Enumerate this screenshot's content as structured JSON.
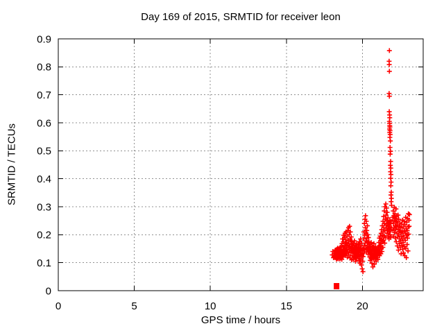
{
  "window": {
    "background": "#ffffff"
  },
  "chart_data": {
    "type": "scatter",
    "title": "Day 169 of 2015, SRMTID for receiver leon",
    "xlabel": "GPS time / hours",
    "ylabel": "SRMTID / TECUs",
    "xlim": [
      0,
      24
    ],
    "ylim": [
      0,
      0.9
    ],
    "xticks": [
      [
        0,
        "0"
      ],
      [
        5,
        "5"
      ],
      [
        10,
        "10"
      ],
      [
        15,
        "15"
      ],
      [
        20,
        "20"
      ]
    ],
    "yticks": [
      [
        0,
        "0"
      ],
      [
        0.1,
        "0.1"
      ],
      [
        0.2,
        "0.2"
      ],
      [
        0.3,
        "0.3"
      ],
      [
        0.4,
        "0.4"
      ],
      [
        0.5,
        "0.5"
      ],
      [
        0.6,
        "0.6"
      ],
      [
        0.7,
        "0.7"
      ],
      [
        0.8,
        "0.8"
      ],
      [
        0.9,
        "0.9"
      ]
    ],
    "grid": true,
    "legend": "none",
    "marker": "plus",
    "marker_color": "#ff0000",
    "grid_color": "#909090",
    "axis_color": "#000000",
    "extra_point": {
      "x": 18.3,
      "y": 0.0,
      "marker": "filled-square"
    },
    "points": [
      [
        18.02,
        0.128
      ],
      [
        18.06,
        0.14
      ],
      [
        18.1,
        0.118
      ],
      [
        18.14,
        0.133
      ],
      [
        18.18,
        0.122
      ],
      [
        18.22,
        0.145
      ],
      [
        18.25,
        0.13
      ],
      [
        18.26,
        0.118
      ],
      [
        18.27,
        0.142
      ],
      [
        18.28,
        0.125
      ],
      [
        18.3,
        0.135
      ],
      [
        18.3,
        0.112
      ],
      [
        18.32,
        0.148
      ],
      [
        18.33,
        0.127
      ],
      [
        18.34,
        0.139
      ],
      [
        18.36,
        0.116
      ],
      [
        18.37,
        0.131
      ],
      [
        18.38,
        0.152
      ],
      [
        18.39,
        0.122
      ],
      [
        18.41,
        0.137
      ],
      [
        18.42,
        0.114
      ],
      [
        18.43,
        0.145
      ],
      [
        18.44,
        0.128
      ],
      [
        18.46,
        0.133
      ],
      [
        18.47,
        0.119
      ],
      [
        18.48,
        0.15
      ],
      [
        18.49,
        0.126
      ],
      [
        18.51,
        0.14
      ],
      [
        18.52,
        0.113
      ],
      [
        18.53,
        0.136
      ],
      [
        18.54,
        0.155
      ],
      [
        18.56,
        0.124
      ],
      [
        18.57,
        0.143
      ],
      [
        18.58,
        0.117
      ],
      [
        18.59,
        0.132
      ],
      [
        18.6,
        0.147
      ],
      [
        18.61,
        0.121
      ],
      [
        18.62,
        0.158
      ],
      [
        18.63,
        0.134
      ],
      [
        18.65,
        0.112
      ],
      [
        18.66,
        0.168
      ],
      [
        18.67,
        0.141
      ],
      [
        18.68,
        0.125
      ],
      [
        18.7,
        0.185
      ],
      [
        18.71,
        0.138
      ],
      [
        18.72,
        0.155
      ],
      [
        18.73,
        0.12
      ],
      [
        18.75,
        0.175
      ],
      [
        18.76,
        0.132
      ],
      [
        18.77,
        0.198
      ],
      [
        18.78,
        0.144
      ],
      [
        18.8,
        0.161
      ],
      [
        18.81,
        0.128
      ],
      [
        18.82,
        0.19
      ],
      [
        18.83,
        0.149
      ],
      [
        18.85,
        0.135
      ],
      [
        18.86,
        0.205
      ],
      [
        18.87,
        0.152
      ],
      [
        18.88,
        0.17
      ],
      [
        18.9,
        0.126
      ],
      [
        18.91,
        0.182
      ],
      [
        18.92,
        0.146
      ],
      [
        18.93,
        0.21
      ],
      [
        18.95,
        0.16
      ],
      [
        18.96,
        0.133
      ],
      [
        18.97,
        0.172
      ],
      [
        18.99,
        0.148
      ],
      [
        19.0,
        0.195
      ],
      [
        19.01,
        0.12
      ],
      [
        19.03,
        0.162
      ],
      [
        19.04,
        0.215
      ],
      [
        19.05,
        0.139
      ],
      [
        19.07,
        0.18
      ],
      [
        19.08,
        0.155
      ],
      [
        19.09,
        0.225
      ],
      [
        19.11,
        0.128
      ],
      [
        19.12,
        0.168
      ],
      [
        19.13,
        0.2
      ],
      [
        19.15,
        0.145
      ],
      [
        19.16,
        0.23
      ],
      [
        19.17,
        0.158
      ],
      [
        19.19,
        0.185
      ],
      [
        19.2,
        0.117
      ],
      [
        19.21,
        0.21
      ],
      [
        19.23,
        0.15
      ],
      [
        19.24,
        0.175
      ],
      [
        19.25,
        0.135
      ],
      [
        19.27,
        0.192
      ],
      [
        19.28,
        0.16
      ],
      [
        19.29,
        0.11
      ],
      [
        19.31,
        0.178
      ],
      [
        19.32,
        0.142
      ],
      [
        19.33,
        0.165
      ],
      [
        19.35,
        0.152
      ],
      [
        19.36,
        0.125
      ],
      [
        19.38,
        0.16
      ],
      [
        19.39,
        0.138
      ],
      [
        19.4,
        0.112
      ],
      [
        19.42,
        0.17
      ],
      [
        19.43,
        0.146
      ],
      [
        19.44,
        0.122
      ],
      [
        19.46,
        0.155
      ],
      [
        19.47,
        0.133
      ],
      [
        19.48,
        0.178
      ],
      [
        19.5,
        0.118
      ],
      [
        19.51,
        0.15
      ],
      [
        19.52,
        0.136
      ],
      [
        19.54,
        0.163
      ],
      [
        19.55,
        0.105
      ],
      [
        19.56,
        0.144
      ],
      [
        19.58,
        0.128
      ],
      [
        19.59,
        0.157
      ],
      [
        19.6,
        0.14
      ],
      [
        19.62,
        0.115
      ],
      [
        19.63,
        0.168
      ],
      [
        19.64,
        0.131
      ],
      [
        19.66,
        0.152
      ],
      [
        19.67,
        0.124
      ],
      [
        19.68,
        0.145
      ],
      [
        19.7,
        0.135
      ],
      [
        19.71,
        0.148
      ],
      [
        19.73,
        0.12
      ],
      [
        19.74,
        0.165
      ],
      [
        19.75,
        0.138
      ],
      [
        19.77,
        0.108
      ],
      [
        19.78,
        0.155
      ],
      [
        19.79,
        0.13
      ],
      [
        19.81,
        0.175
      ],
      [
        19.82,
        0.115
      ],
      [
        19.83,
        0.142
      ],
      [
        19.85,
        0.098
      ],
      [
        19.86,
        0.16
      ],
      [
        19.87,
        0.128
      ],
      [
        19.89,
        0.185
      ],
      [
        19.9,
        0.135
      ],
      [
        19.91,
        0.11
      ],
      [
        19.93,
        0.152
      ],
      [
        19.94,
        0.092
      ],
      [
        19.95,
        0.17
      ],
      [
        19.96,
        0.125
      ],
      [
        19.98,
        0.145
      ],
      [
        19.99,
        0.078
      ],
      [
        20.0,
        0.132
      ],
      [
        20.02,
        0.105
      ],
      [
        20.03,
        0.148
      ],
      [
        20.04,
        0.068
      ],
      [
        20.05,
        0.122
      ],
      [
        20.06,
        0.15
      ],
      [
        20.08,
        0.185
      ],
      [
        20.09,
        0.135
      ],
      [
        20.1,
        0.21
      ],
      [
        20.12,
        0.162
      ],
      [
        20.13,
        0.24
      ],
      [
        20.14,
        0.145
      ],
      [
        20.16,
        0.198
      ],
      [
        20.17,
        0.255
      ],
      [
        20.18,
        0.17
      ],
      [
        20.2,
        0.225
      ],
      [
        20.21,
        0.268
      ],
      [
        20.22,
        0.152
      ],
      [
        20.24,
        0.205
      ],
      [
        20.25,
        0.178
      ],
      [
        20.26,
        0.248
      ],
      [
        20.28,
        0.14
      ],
      [
        20.29,
        0.215
      ],
      [
        20.3,
        0.188
      ],
      [
        20.32,
        0.16
      ],
      [
        20.33,
        0.232
      ],
      [
        20.34,
        0.148
      ],
      [
        20.36,
        0.2
      ],
      [
        20.37,
        0.172
      ],
      [
        20.38,
        0.13
      ],
      [
        20.4,
        0.19
      ],
      [
        20.41,
        0.155
      ],
      [
        20.43,
        0.175
      ],
      [
        20.44,
        0.142
      ],
      [
        20.45,
        0.165
      ],
      [
        20.46,
        0.138
      ],
      [
        20.48,
        0.158
      ],
      [
        20.49,
        0.12
      ],
      [
        20.5,
        0.145
      ],
      [
        20.52,
        0.108
      ],
      [
        20.53,
        0.165
      ],
      [
        20.54,
        0.132
      ],
      [
        20.56,
        0.15
      ],
      [
        20.57,
        0.115
      ],
      [
        20.58,
        0.172
      ],
      [
        20.6,
        0.128
      ],
      [
        20.61,
        0.142
      ],
      [
        20.63,
        0.098
      ],
      [
        20.64,
        0.16
      ],
      [
        20.65,
        0.135
      ],
      [
        20.67,
        0.118
      ],
      [
        20.68,
        0.148
      ],
      [
        20.69,
        0.085
      ],
      [
        20.71,
        0.155
      ],
      [
        20.72,
        0.125
      ],
      [
        20.73,
        0.14
      ],
      [
        20.75,
        0.112
      ],
      [
        20.76,
        0.168
      ],
      [
        20.77,
        0.13
      ],
      [
        20.79,
        0.095
      ],
      [
        20.8,
        0.152
      ],
      [
        20.81,
        0.122
      ],
      [
        20.83,
        0.145
      ],
      [
        20.84,
        0.135
      ],
      [
        20.86,
        0.115
      ],
      [
        20.87,
        0.158
      ],
      [
        20.88,
        0.128
      ],
      [
        20.9,
        0.142
      ],
      [
        20.91,
        0.105
      ],
      [
        20.93,
        0.15
      ],
      [
        20.94,
        0.132
      ],
      [
        20.95,
        0.118
      ],
      [
        20.97,
        0.145
      ],
      [
        20.98,
        0.125
      ],
      [
        21.0,
        0.138
      ],
      [
        21.02,
        0.112
      ],
      [
        21.03,
        0.13
      ],
      [
        21.05,
        0.148
      ],
      [
        21.06,
        0.155
      ],
      [
        21.08,
        0.135
      ],
      [
        21.09,
        0.172
      ],
      [
        21.1,
        0.148
      ],
      [
        21.12,
        0.188
      ],
      [
        21.13,
        0.125
      ],
      [
        21.14,
        0.162
      ],
      [
        21.16,
        0.142
      ],
      [
        21.17,
        0.195
      ],
      [
        21.18,
        0.158
      ],
      [
        21.2,
        0.178
      ],
      [
        21.21,
        0.132
      ],
      [
        21.23,
        0.205
      ],
      [
        21.24,
        0.168
      ],
      [
        21.25,
        0.15
      ],
      [
        21.27,
        0.218
      ],
      [
        21.28,
        0.185
      ],
      [
        21.29,
        0.14
      ],
      [
        21.31,
        0.232
      ],
      [
        21.32,
        0.175
      ],
      [
        21.33,
        0.198
      ],
      [
        21.35,
        0.155
      ],
      [
        21.36,
        0.248
      ],
      [
        21.37,
        0.21
      ],
      [
        21.39,
        0.18
      ],
      [
        21.4,
        0.265
      ],
      [
        21.41,
        0.225
      ],
      [
        21.43,
        0.195
      ],
      [
        21.44,
        0.285
      ],
      [
        21.45,
        0.24
      ],
      [
        21.47,
        0.17
      ],
      [
        21.48,
        0.3
      ],
      [
        21.49,
        0.215
      ],
      [
        21.51,
        0.255
      ],
      [
        21.52,
        0.19
      ],
      [
        21.54,
        0.31
      ],
      [
        21.55,
        0.235
      ],
      [
        21.56,
        0.27
      ],
      [
        21.58,
        0.225
      ],
      [
        21.59,
        0.295
      ],
      [
        21.6,
        0.25
      ],
      [
        21.62,
        0.205
      ],
      [
        21.63,
        0.28
      ],
      [
        21.65,
        0.24
      ],
      [
        21.66,
        0.215
      ],
      [
        21.68,
        0.26
      ],
      [
        21.69,
        0.23
      ],
      [
        21.71,
        0.195
      ],
      [
        21.72,
        0.245
      ],
      [
        21.74,
        0.22
      ],
      [
        21.75,
        0.185
      ],
      [
        21.77,
        0.235
      ],
      [
        21.78,
        0.21
      ],
      [
        21.8,
        0.252
      ],
      [
        21.81,
        0.228
      ],
      [
        21.83,
        0.2
      ],
      [
        21.84,
        0.242
      ],
      [
        21.86,
        0.218
      ],
      [
        21.87,
        0.19
      ],
      [
        21.89,
        0.248
      ],
      [
        21.9,
        0.225
      ],
      [
        21.78,
        0.858
      ],
      [
        21.76,
        0.82
      ],
      [
        21.77,
        0.808
      ],
      [
        21.78,
        0.784
      ],
      [
        21.76,
        0.705
      ],
      [
        21.78,
        0.695
      ],
      [
        21.77,
        0.64
      ],
      [
        21.79,
        0.628
      ],
      [
        21.8,
        0.618
      ],
      [
        21.78,
        0.605
      ],
      [
        21.79,
        0.598
      ],
      [
        21.8,
        0.59
      ],
      [
        21.81,
        0.585
      ],
      [
        21.79,
        0.578
      ],
      [
        21.82,
        0.572
      ],
      [
        21.8,
        0.565
      ],
      [
        21.83,
        0.558
      ],
      [
        21.81,
        0.548
      ],
      [
        21.84,
        0.535
      ],
      [
        21.82,
        0.512
      ],
      [
        21.85,
        0.498
      ],
      [
        21.83,
        0.488
      ],
      [
        21.86,
        0.462
      ],
      [
        21.84,
        0.448
      ],
      [
        21.87,
        0.438
      ],
      [
        21.85,
        0.425
      ],
      [
        21.88,
        0.415
      ],
      [
        21.86,
        0.402
      ],
      [
        21.89,
        0.388
      ],
      [
        21.87,
        0.375
      ],
      [
        21.9,
        0.352
      ],
      [
        21.88,
        0.342
      ],
      [
        21.91,
        0.33
      ],
      [
        21.89,
        0.318
      ],
      [
        21.92,
        0.305
      ],
      [
        22.0,
        0.262
      ],
      [
        22.01,
        0.215
      ],
      [
        22.03,
        0.285
      ],
      [
        22.04,
        0.24
      ],
      [
        22.05,
        0.195
      ],
      [
        22.07,
        0.268
      ],
      [
        22.08,
        0.225
      ],
      [
        22.1,
        0.298
      ],
      [
        22.11,
        0.252
      ],
      [
        22.12,
        0.208
      ],
      [
        22.14,
        0.275
      ],
      [
        22.15,
        0.232
      ],
      [
        22.16,
        0.188
      ],
      [
        22.18,
        0.258
      ],
      [
        22.19,
        0.22
      ],
      [
        22.21,
        0.292
      ],
      [
        22.22,
        0.245
      ],
      [
        22.23,
        0.175
      ],
      [
        22.25,
        0.265
      ],
      [
        22.26,
        0.228
      ],
      [
        22.28,
        0.205
      ],
      [
        22.29,
        0.248
      ],
      [
        22.3,
        0.16
      ],
      [
        22.32,
        0.235
      ],
      [
        22.33,
        0.192
      ],
      [
        22.35,
        0.27
      ],
      [
        22.36,
        0.218
      ],
      [
        22.37,
        0.145
      ],
      [
        22.39,
        0.255
      ],
      [
        22.4,
        0.2
      ],
      [
        22.42,
        0.23
      ],
      [
        22.43,
        0.168
      ],
      [
        22.44,
        0.212
      ],
      [
        22.46,
        0.185
      ],
      [
        22.47,
        0.242
      ],
      [
        22.49,
        0.155
      ],
      [
        22.5,
        0.225
      ],
      [
        22.52,
        0.178
      ],
      [
        22.53,
        0.208
      ],
      [
        22.55,
        0.132
      ],
      [
        22.56,
        0.195
      ],
      [
        22.58,
        0.238
      ],
      [
        22.59,
        0.162
      ],
      [
        22.61,
        0.215
      ],
      [
        22.62,
        0.185
      ],
      [
        22.64,
        0.252
      ],
      [
        22.65,
        0.148
      ],
      [
        22.67,
        0.205
      ],
      [
        22.68,
        0.172
      ],
      [
        22.7,
        0.228
      ],
      [
        22.71,
        0.135
      ],
      [
        22.73,
        0.192
      ],
      [
        22.74,
        0.248
      ],
      [
        22.76,
        0.158
      ],
      [
        22.77,
        0.212
      ],
      [
        22.79,
        0.125
      ],
      [
        22.8,
        0.235
      ],
      [
        22.82,
        0.18
      ],
      [
        22.83,
        0.205
      ],
      [
        22.85,
        0.262
      ],
      [
        22.86,
        0.152
      ],
      [
        22.88,
        0.222
      ],
      [
        22.89,
        0.118
      ],
      [
        22.91,
        0.198
      ],
      [
        22.92,
        0.245
      ],
      [
        22.94,
        0.165
      ],
      [
        22.95,
        0.215
      ],
      [
        22.97,
        0.188
      ],
      [
        22.98,
        0.258
      ],
      [
        23.0,
        0.142
      ],
      [
        23.02,
        0.228
      ],
      [
        23.03,
        0.275
      ],
      [
        23.05,
        0.202
      ],
      [
        23.07,
        0.252
      ],
      [
        23.08,
        0.23
      ],
      [
        23.1,
        0.272
      ]
    ]
  }
}
